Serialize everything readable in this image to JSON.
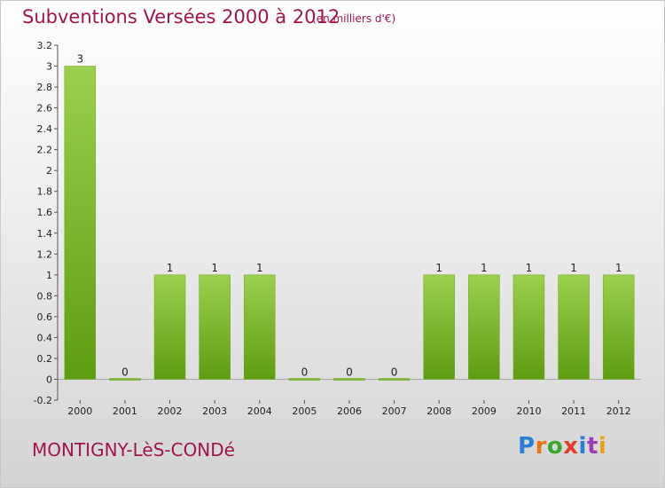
{
  "header": {
    "title": "Subventions Versées 2000 à 2012",
    "unit": "(en milliers d'€)"
  },
  "footer": {
    "commune": "MONTIGNY-LèS-CONDé",
    "logo": {
      "text": "Proxiti",
      "letter_colors": [
        "#2a7fd4",
        "#e8731c",
        "#3aa82e",
        "#e23c2a",
        "#2a7fd4",
        "#9c3fb0",
        "#e8a11c"
      ]
    }
  },
  "colors": {
    "title": "#a0144f",
    "bar_light": "#9bd04e",
    "bar_dark": "#5e9c12"
  },
  "chart_data": {
    "type": "bar",
    "title": "Subventions Versées 2000 à 2012",
    "xlabel": "",
    "ylabel": "",
    "categories": [
      "2000",
      "2001",
      "2002",
      "2003",
      "2004",
      "2005",
      "2006",
      "2007",
      "2008",
      "2009",
      "2010",
      "2011",
      "2012"
    ],
    "values": [
      3,
      0,
      1,
      1,
      1,
      0,
      0,
      0,
      1,
      1,
      1,
      1,
      1
    ],
    "data_labels": [
      "3",
      "0",
      "1",
      "1",
      "1",
      "0",
      "0",
      "0",
      "1",
      "1",
      "1",
      "1",
      "1"
    ],
    "ylim": [
      -0.2,
      3.2
    ],
    "yticks": [
      -0.2,
      0,
      0.2,
      0.4,
      0.6,
      0.8,
      1,
      1.2,
      1.4,
      1.6,
      1.8,
      2,
      2.2,
      2.4,
      2.6,
      2.8,
      3,
      3.2
    ],
    "ytick_labels": [
      "-0.2",
      "0",
      "0.2",
      "0.4",
      "0.6",
      "0.8",
      "1",
      "1.2",
      "1.4",
      "1.6",
      "1.8",
      "2",
      "2.2",
      "2.4",
      "2.6",
      "2.8",
      "3",
      "3.2"
    ],
    "grid": false,
    "legend": "none"
  }
}
